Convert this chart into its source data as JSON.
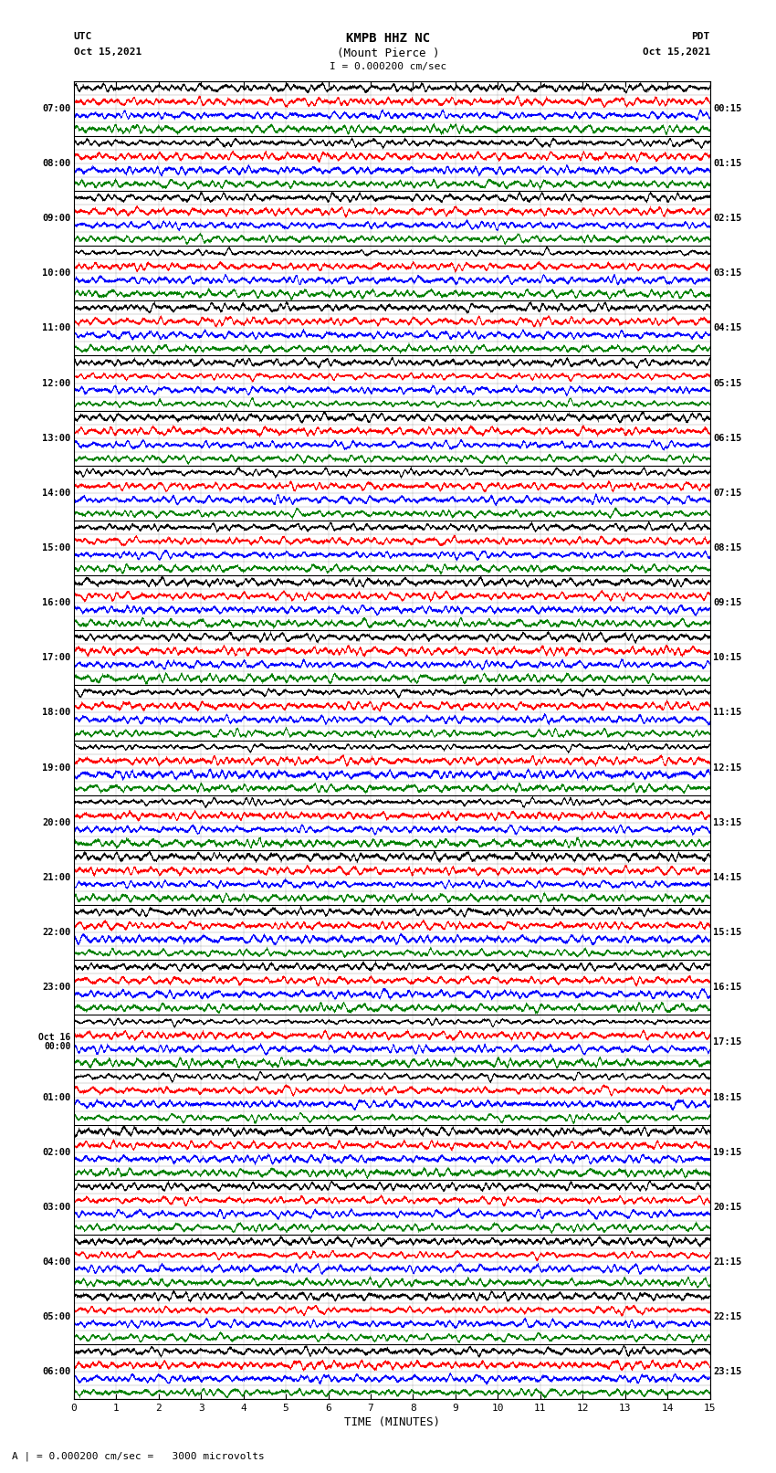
{
  "title_line1": "KMPB HHZ NC",
  "title_line2": "(Mount Pierce )",
  "title_scale": "I = 0.000200 cm/sec",
  "label_left": "UTC",
  "label_right": "PDT",
  "date_left": "Oct 15,2021",
  "date_right": "Oct 15,2021",
  "xlabel": "TIME (MINUTES)",
  "footer": "A | = 0.000200 cm/sec =   3000 microvolts",
  "left_times": [
    "07:00",
    "08:00",
    "09:00",
    "10:00",
    "11:00",
    "12:00",
    "13:00",
    "14:00",
    "15:00",
    "16:00",
    "17:00",
    "18:00",
    "19:00",
    "20:00",
    "21:00",
    "22:00",
    "23:00",
    "Oct 16\n00:00",
    "01:00",
    "02:00",
    "03:00",
    "04:00",
    "05:00",
    "06:00"
  ],
  "right_times": [
    "00:15",
    "01:15",
    "02:15",
    "03:15",
    "04:15",
    "05:15",
    "06:15",
    "07:15",
    "08:15",
    "09:15",
    "10:15",
    "11:15",
    "12:15",
    "13:15",
    "14:15",
    "15:15",
    "16:15",
    "17:15",
    "18:15",
    "19:15",
    "20:15",
    "21:15",
    "22:15",
    "23:15"
  ],
  "num_traces": 24,
  "trace_colors": [
    "black",
    "red",
    "blue",
    "green"
  ],
  "background_color": "white",
  "figwidth": 8.5,
  "figheight": 16.13,
  "dpi": 100,
  "xlim": [
    0,
    15
  ],
  "xticks": [
    0,
    1,
    2,
    3,
    4,
    5,
    6,
    7,
    8,
    9,
    10,
    11,
    12,
    13,
    14,
    15
  ],
  "seed": 42,
  "lines_per_trace": 4
}
